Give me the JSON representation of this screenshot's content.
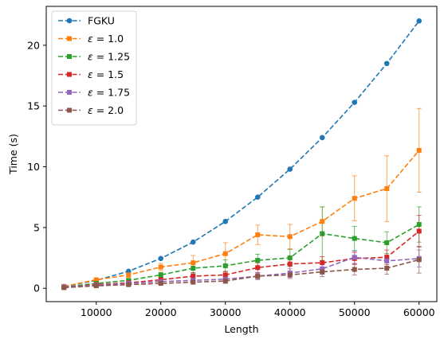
{
  "chart_data": {
    "type": "line",
    "xlabel": "Length",
    "ylabel": "Time (s)",
    "xlim": [
      2250,
      62750
    ],
    "ylim": [
      -1.1,
      23.2
    ],
    "xticks": [
      10000,
      20000,
      30000,
      40000,
      50000,
      60000
    ],
    "yticks": [
      0,
      5,
      10,
      15,
      20
    ],
    "grid": false,
    "legend_position": "top-left",
    "x": [
      5000,
      10000,
      15000,
      20000,
      25000,
      30000,
      35000,
      40000,
      45000,
      50000,
      55000,
      60000
    ],
    "series": [
      {
        "name": "FGKU",
        "legend_plain": "FGKU",
        "color": "#1f77b4",
        "marker": "circle",
        "values": [
          0.15,
          0.65,
          1.4,
          2.45,
          3.8,
          5.5,
          7.5,
          9.8,
          12.4,
          15.3,
          18.5,
          22.0
        ],
        "errors": [
          0,
          0,
          0,
          0,
          0,
          0,
          0,
          0,
          0,
          0,
          0,
          0
        ]
      },
      {
        "name": "ε = 1.0",
        "legend_plain": "1.0",
        "color": "#ff7f0e",
        "marker": "square",
        "values": [
          0.15,
          0.7,
          1.1,
          1.75,
          2.1,
          2.85,
          4.4,
          4.25,
          5.5,
          7.4,
          8.2,
          11.35
        ],
        "errors": [
          0.05,
          0.1,
          0.2,
          0.3,
          0.6,
          0.9,
          0.8,
          1.0,
          1.2,
          1.85,
          2.7,
          3.45
        ]
      },
      {
        "name": "ε = 1.25",
        "legend_plain": "1.25",
        "color": "#2ca02c",
        "marker": "square",
        "values": [
          0.1,
          0.4,
          0.65,
          1.1,
          1.65,
          1.85,
          2.3,
          2.5,
          4.5,
          4.1,
          3.75,
          5.25
        ],
        "errors": [
          0.05,
          0.1,
          0.1,
          0.2,
          0.4,
          0.5,
          0.5,
          0.7,
          2.2,
          1.0,
          0.9,
          1.45
        ]
      },
      {
        "name": "ε = 1.5",
        "legend_plain": "1.5",
        "color": "#d62728",
        "marker": "square",
        "values": [
          0.1,
          0.3,
          0.45,
          0.7,
          1.0,
          1.1,
          1.7,
          2.0,
          2.1,
          2.45,
          2.55,
          4.7
        ],
        "errors": [
          0.05,
          0.1,
          0.1,
          0.2,
          0.3,
          0.3,
          0.4,
          0.6,
          0.5,
          0.5,
          0.6,
          1.3
        ]
      },
      {
        "name": "ε = 1.75",
        "legend_plain": "1.75",
        "color": "#9467bd",
        "marker": "square",
        "values": [
          0.1,
          0.25,
          0.4,
          0.55,
          0.65,
          0.75,
          1.0,
          1.25,
          1.6,
          2.55,
          2.25,
          2.45
        ],
        "errors": [
          0.05,
          0.1,
          0.1,
          0.15,
          0.2,
          0.25,
          0.3,
          0.35,
          0.45,
          0.5,
          0.5,
          0.7
        ]
      },
      {
        "name": "ε = 2.0",
        "legend_plain": "2.0",
        "color": "#8c564b",
        "marker": "square",
        "values": [
          0.05,
          0.2,
          0.3,
          0.4,
          0.5,
          0.6,
          1.0,
          1.1,
          1.35,
          1.55,
          1.65,
          2.35
        ],
        "errors": [
          0.05,
          0.05,
          0.1,
          0.1,
          0.15,
          0.2,
          0.25,
          0.3,
          0.4,
          0.45,
          0.5,
          1.1
        ]
      }
    ]
  }
}
